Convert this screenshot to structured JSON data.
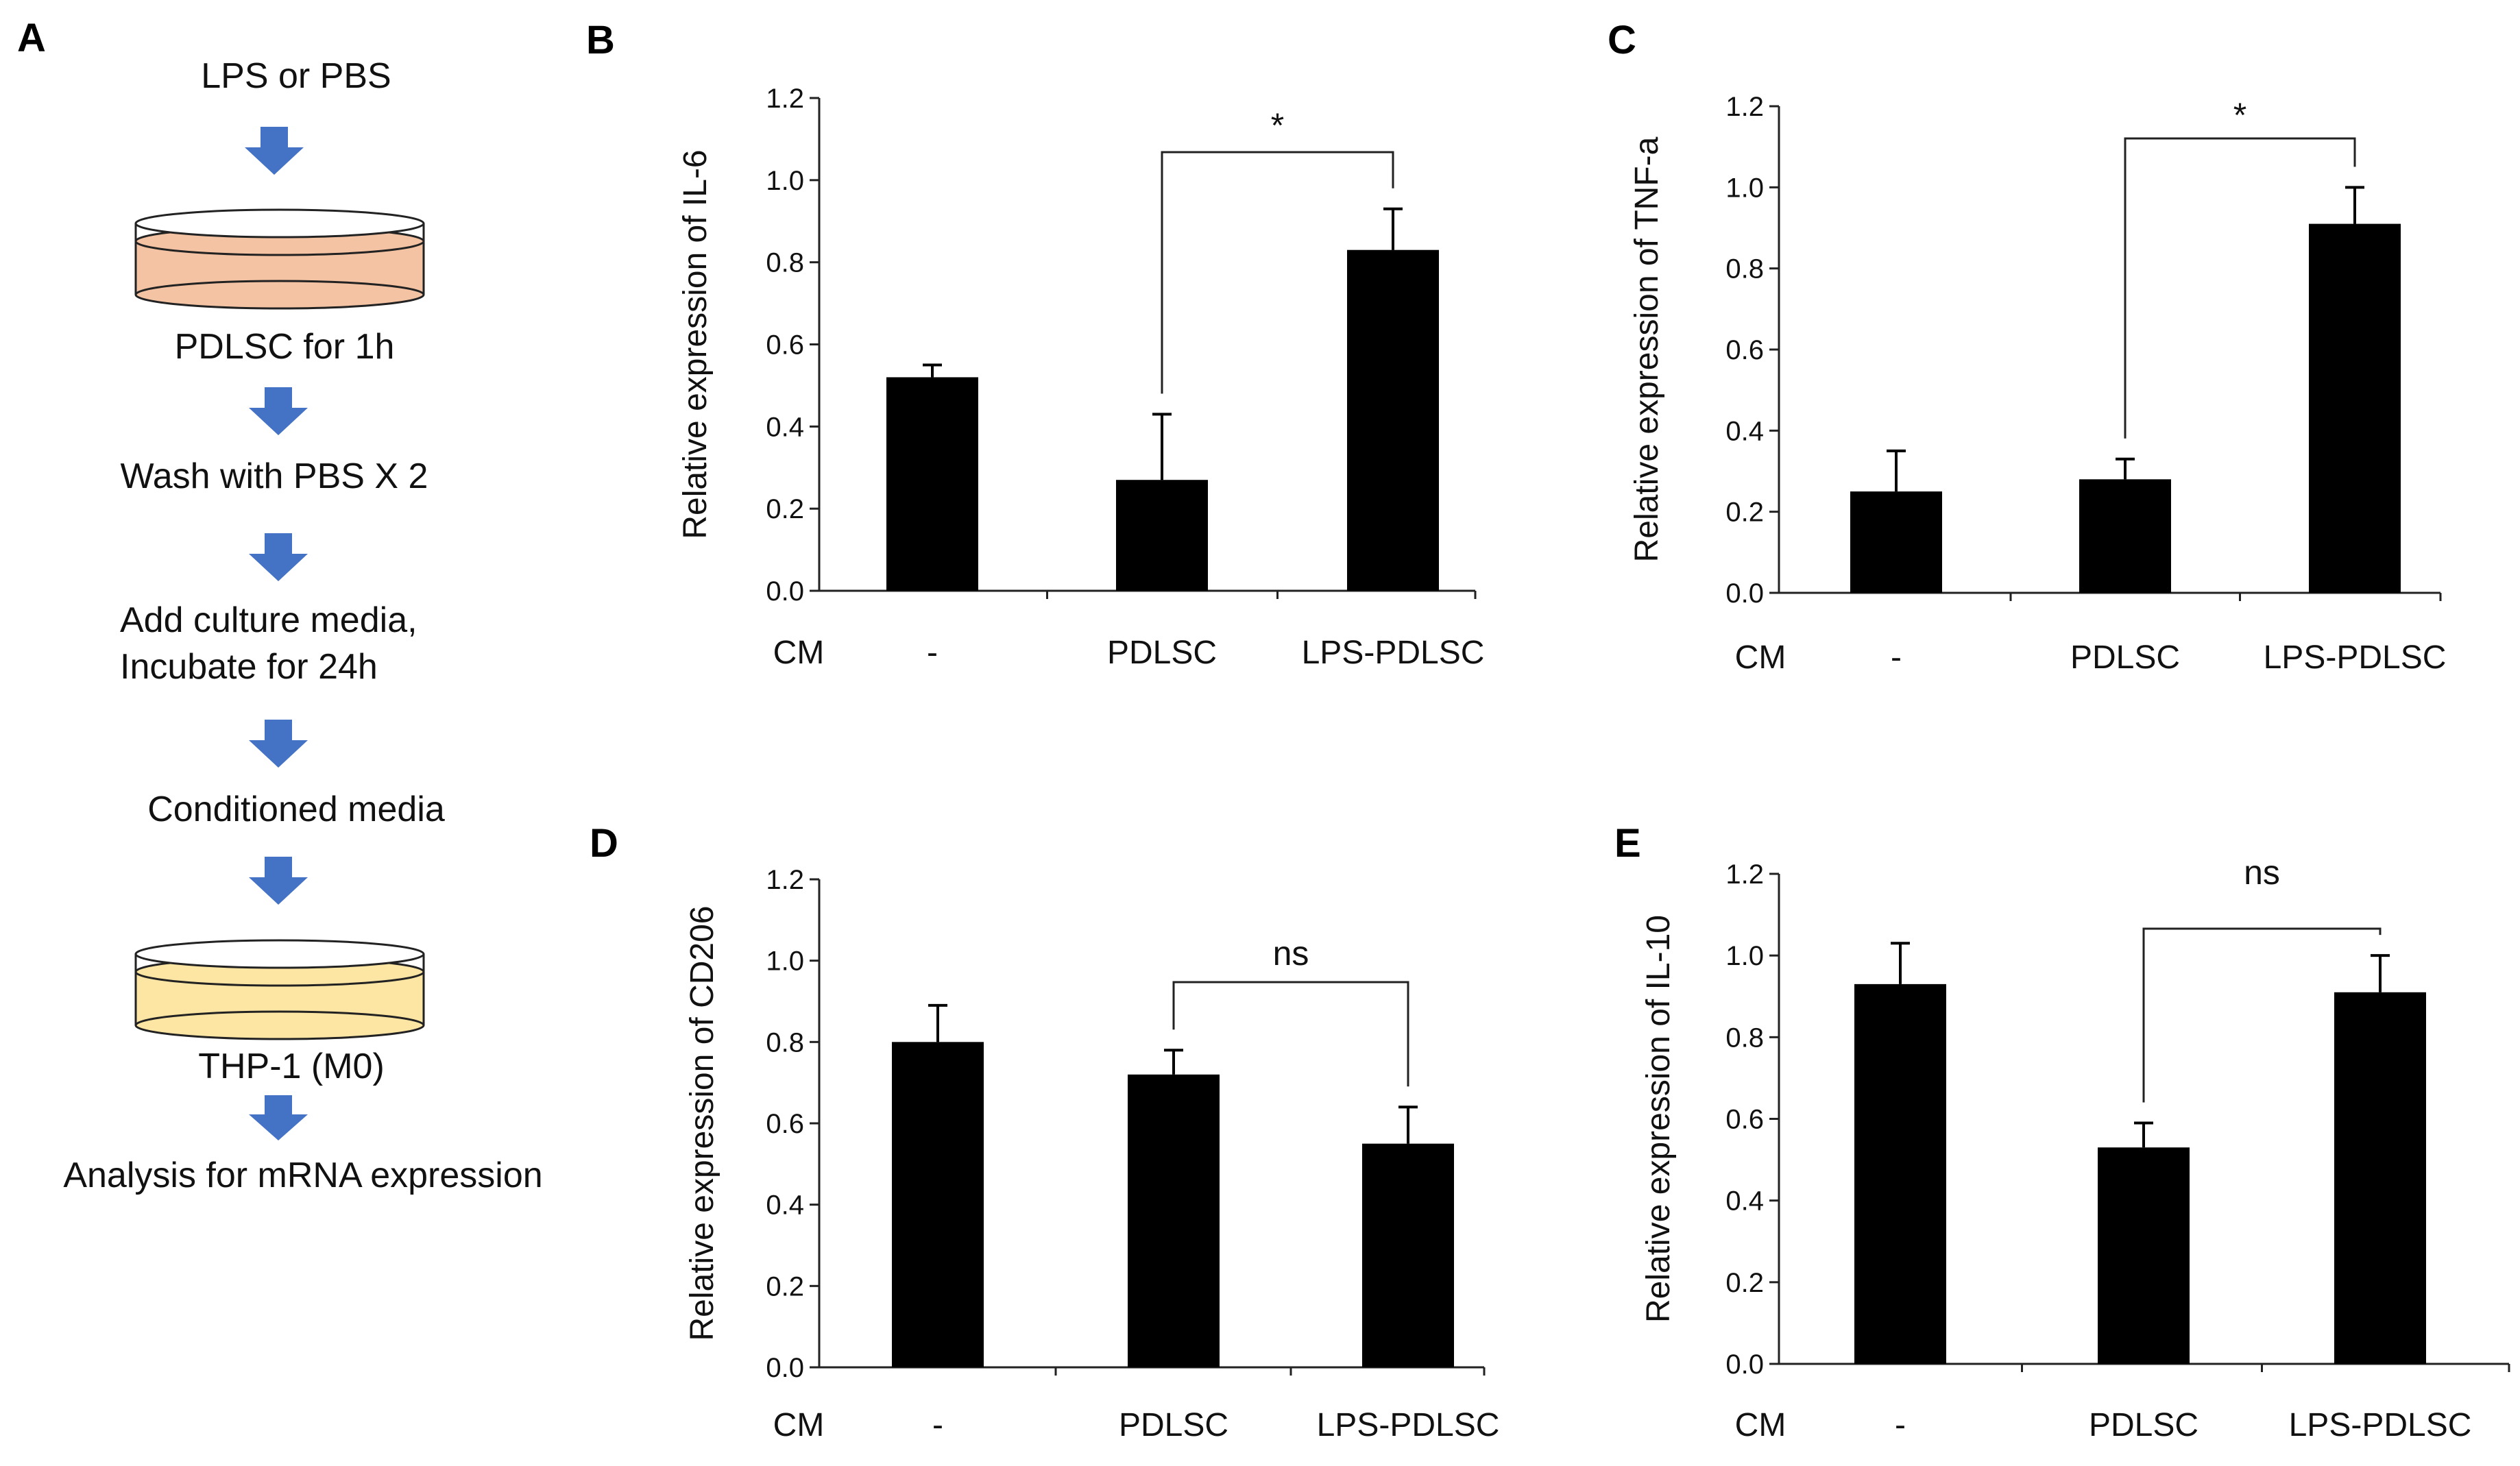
{
  "figure": {
    "panel_a": {
      "letter": "A",
      "steps": {
        "lps_or_pbs": "LPS or PBS",
        "pdlsc_1h": "PDLSC for 1h",
        "wash": "Wash with PBS X 2",
        "add_media_1": "Add culture media,",
        "add_media_2": "Incubate for 24h",
        "conditioned_media": "Conditioned media",
        "thp1": "THP-1 (M0)",
        "analysis": "Analysis for mRNA expression"
      },
      "colors": {
        "arrow": "#4472c4",
        "dish1_liquid": "#f4c3a3",
        "dish2_liquid": "#fde6a4"
      }
    }
  },
  "chart_data": [
    {
      "panel": "B",
      "type": "bar",
      "row_label": "CM",
      "categories": [
        "-",
        "PDLSC",
        "LPS-PDLSC"
      ],
      "values": [
        0.52,
        0.27,
        0.83
      ],
      "errors": [
        0.03,
        0.16,
        0.1
      ],
      "ylabel": "Relative expression of IL-6",
      "ylim": [
        0,
        1.2
      ],
      "yticks": [
        "0.0",
        "0.2",
        "0.4",
        "0.6",
        "0.8",
        "1.0",
        "1.2"
      ],
      "significance": {
        "from": 1,
        "to": 2,
        "label": "*"
      }
    },
    {
      "panel": "C",
      "type": "bar",
      "row_label": "CM",
      "categories": [
        "-",
        "PDLSC",
        "LPS-PDLSC"
      ],
      "values": [
        0.25,
        0.28,
        0.91
      ],
      "errors": [
        0.1,
        0.05,
        0.09
      ],
      "ylabel": "Relative expression of TNF-a",
      "ylim": [
        0,
        1.2
      ],
      "yticks": [
        "0.0",
        "0.2",
        "0.4",
        "0.6",
        "0.8",
        "1.0",
        "1.2"
      ],
      "significance": {
        "from": 1,
        "to": 2,
        "label": "*"
      }
    },
    {
      "panel": "D",
      "type": "bar",
      "row_label": "CM",
      "categories": [
        "-",
        "PDLSC",
        "LPS-PDLSC"
      ],
      "values": [
        0.8,
        0.72,
        0.55
      ],
      "errors": [
        0.09,
        0.06,
        0.09
      ],
      "ylabel": "Relative expression of CD206",
      "ylim": [
        0,
        1.2
      ],
      "yticks": [
        "0.0",
        "0.2",
        "0.4",
        "0.6",
        "0.8",
        "1.0",
        "1.2"
      ],
      "significance": {
        "from": 1,
        "to": 2,
        "label": "ns"
      }
    },
    {
      "panel": "E",
      "type": "bar",
      "row_label": "CM",
      "categories": [
        "-",
        "PDLSC",
        "LPS-PDLSC"
      ],
      "values": [
        0.93,
        0.53,
        0.91
      ],
      "errors": [
        0.1,
        0.06,
        0.09
      ],
      "ylabel": "Relative expression of IL-10",
      "ylim": [
        0,
        1.2
      ],
      "yticks": [
        "0.0",
        "0.2",
        "0.4",
        "0.6",
        "0.8",
        "1.0",
        "1.2"
      ],
      "significance": {
        "from": 1,
        "to": 2,
        "label": "ns"
      }
    }
  ]
}
